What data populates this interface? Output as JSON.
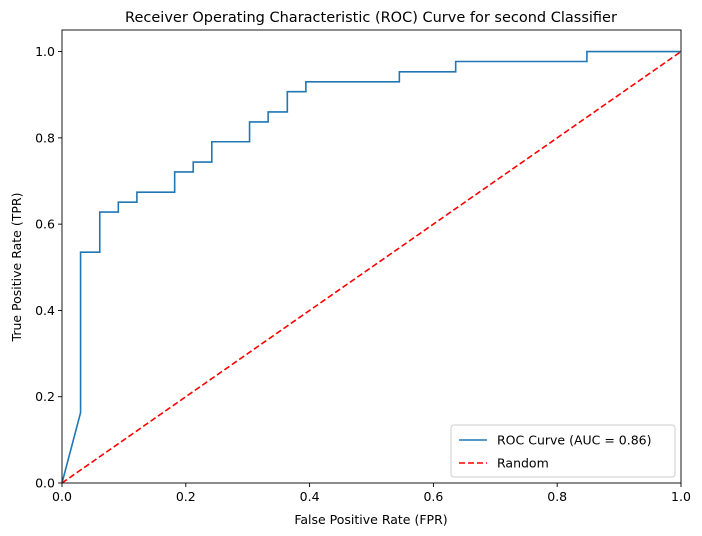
{
  "chart_data": {
    "type": "line",
    "title": "Receiver Operating Characteristic (ROC) Curve for second Classifier",
    "xlabel": "False Positive Rate (FPR)",
    "ylabel": "True Positive Rate (TPR)",
    "xlim": [
      0.0,
      1.0
    ],
    "ylim": [
      0.0,
      1.05
    ],
    "xticks": [
      0.0,
      0.2,
      0.4,
      0.6,
      0.8,
      1.0
    ],
    "yticks": [
      0.0,
      0.2,
      0.4,
      0.6,
      0.8,
      1.0
    ],
    "xtick_labels": [
      "0.0",
      "0.2",
      "0.4",
      "0.6",
      "0.8",
      "1.0"
    ],
    "ytick_labels": [
      "0.0",
      "0.2",
      "0.4",
      "0.6",
      "0.8",
      "1.0"
    ],
    "grid": false,
    "legend_position": "lower-right",
    "series": [
      {
        "name": "ROC Curve (AUC = 0.86)",
        "color": "#1f77b4",
        "style": "solid",
        "x": [
          0.0,
          0.03,
          0.03,
          0.061,
          0.061,
          0.091,
          0.091,
          0.121,
          0.121,
          0.182,
          0.182,
          0.212,
          0.212,
          0.242,
          0.242,
          0.303,
          0.303,
          0.333,
          0.333,
          0.364,
          0.364,
          0.394,
          0.394,
          0.545,
          0.545,
          0.636,
          0.636,
          0.848,
          0.848,
          1.0
        ],
        "y": [
          0.0,
          0.163,
          0.535,
          0.535,
          0.628,
          0.628,
          0.651,
          0.651,
          0.674,
          0.674,
          0.721,
          0.721,
          0.744,
          0.744,
          0.791,
          0.791,
          0.837,
          0.837,
          0.86,
          0.86,
          0.907,
          0.907,
          0.93,
          0.93,
          0.953,
          0.953,
          0.977,
          0.977,
          1.0,
          1.0
        ]
      },
      {
        "name": "Random",
        "color": "#ff0000",
        "style": "dashed",
        "x": [
          0.0,
          1.0
        ],
        "y": [
          0.0,
          1.0
        ]
      }
    ]
  }
}
